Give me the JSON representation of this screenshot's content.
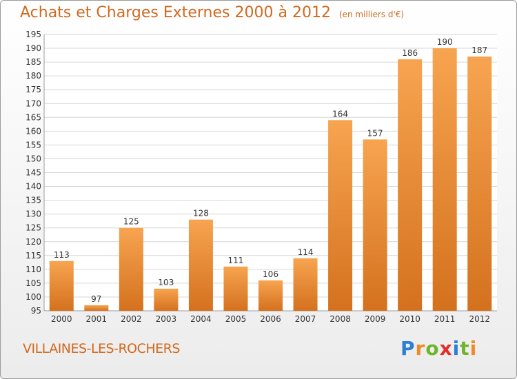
{
  "title": {
    "main": "Achats et Charges Externes 2000 à 2012",
    "unit": "(en milliers d'€)"
  },
  "commune": "VILLAINES-LES-ROCHERS",
  "logo": {
    "text": "Proxiti",
    "letter_colors": [
      "#2d7fd3",
      "#f08a24",
      "#6fb42c",
      "#e32d2d",
      "#2d7fd3",
      "#6fb42c",
      "#f08a24"
    ]
  },
  "colors": {
    "title": "#d2691e",
    "bar_light": "#f7a450",
    "bar_dark": "#d4711e",
    "grid": "#d6d6d6",
    "axis_text": "#333333"
  },
  "chart_data": {
    "type": "bar",
    "categories": [
      "2000",
      "2001",
      "2002",
      "2003",
      "2004",
      "2005",
      "2006",
      "2007",
      "2008",
      "2009",
      "2010",
      "2011",
      "2012"
    ],
    "values": [
      113,
      97,
      125,
      103,
      128,
      111,
      106,
      114,
      164,
      157,
      186,
      190,
      187
    ],
    "ylim": [
      95,
      195
    ],
    "ytick_step": 5,
    "grid": true,
    "data_labels": true
  }
}
